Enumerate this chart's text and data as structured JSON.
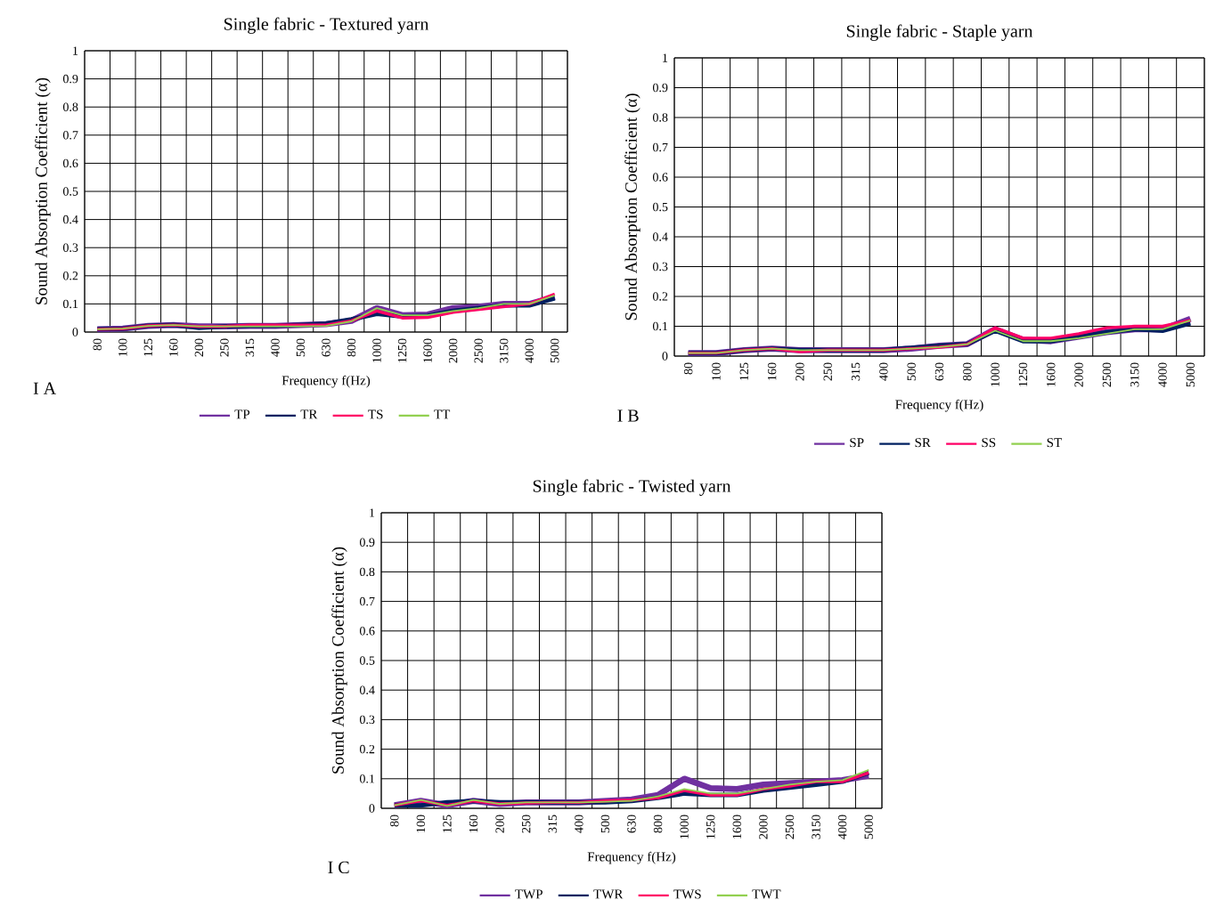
{
  "chart_data": [
    {
      "type": "line",
      "title": "Single fabric - Textured yarn",
      "xlabel": "Frequency f(Hz)",
      "ylabel": "Sound Absorption Coefficient (α)",
      "annotations": [
        "I A"
      ],
      "categories": [
        "80",
        "100",
        "125",
        "160",
        "200",
        "250",
        "315",
        "400",
        "500",
        "630",
        "800",
        "1000",
        "1250",
        "1600",
        "2000",
        "2500",
        "3150",
        "4000",
        "5000"
      ],
      "ylim": [
        0,
        1
      ],
      "yticks": [
        0,
        0.1,
        0.2,
        0.3,
        0.4,
        0.5,
        0.6,
        0.7,
        0.8,
        0.9,
        1
      ],
      "grid": true,
      "legend": "bottom",
      "marker": "none",
      "series": [
        {
          "name": "TP",
          "color": "#7030a0",
          "values": [
            0.01,
            0.012,
            0.022,
            0.025,
            0.02,
            0.02,
            0.022,
            0.022,
            0.025,
            0.028,
            0.04,
            0.085,
            0.06,
            0.062,
            0.085,
            0.09,
            0.1,
            0.1,
            0.125
          ]
        },
        {
          "name": "TR",
          "color": "#002060",
          "values": [
            0.01,
            0.012,
            0.022,
            0.025,
            0.015,
            0.02,
            0.022,
            0.022,
            0.025,
            0.03,
            0.045,
            0.065,
            0.055,
            0.058,
            0.075,
            0.085,
            0.095,
            0.095,
            0.12
          ]
        },
        {
          "name": "TS",
          "color": "#ff0066",
          "values": [
            0.01,
            0.012,
            0.022,
            0.025,
            0.02,
            0.02,
            0.025,
            0.025,
            0.025,
            0.025,
            0.04,
            0.075,
            0.05,
            0.052,
            0.07,
            0.08,
            0.09,
            0.1,
            0.135
          ]
        },
        {
          "name": "TT",
          "color": "#92d050",
          "values": [
            0.01,
            0.012,
            0.022,
            0.025,
            0.02,
            0.02,
            0.02,
            0.02,
            0.02,
            0.022,
            0.038,
            0.085,
            0.06,
            0.06,
            0.075,
            0.085,
            0.1,
            0.1,
            0.13
          ]
        }
      ]
    },
    {
      "type": "line",
      "title": "Single fabric - Staple yarn",
      "xlabel": "Frequency f(Hz)",
      "ylabel": "Sound Absorption Coefficient (α)",
      "annotations": [
        "I B"
      ],
      "categories": [
        "80",
        "100",
        "125",
        "160",
        "200",
        "250",
        "315",
        "400",
        "500",
        "630",
        "800",
        "1000",
        "1250",
        "1600",
        "2000",
        "2500",
        "3150",
        "4000",
        "5000"
      ],
      "ylim": [
        0,
        1
      ],
      "yticks": [
        0,
        0.1,
        0.2,
        0.3,
        0.4,
        0.5,
        0.6,
        0.7,
        0.8,
        0.9,
        1
      ],
      "grid": true,
      "legend": "bottom",
      "marker": "none",
      "series": [
        {
          "name": "SP",
          "color": "#7030a0",
          "values": [
            0.01,
            0.01,
            0.02,
            0.025,
            0.02,
            0.02,
            0.02,
            0.02,
            0.025,
            0.035,
            0.04,
            0.09,
            0.055,
            0.05,
            0.065,
            0.08,
            0.09,
            0.09,
            0.125
          ]
        },
        {
          "name": "SR",
          "color": "#002060",
          "values": [
            0.01,
            0.01,
            0.02,
            0.025,
            0.02,
            0.02,
            0.02,
            0.02,
            0.028,
            0.035,
            0.04,
            0.085,
            0.05,
            0.05,
            0.065,
            0.08,
            0.09,
            0.085,
            0.11
          ]
        },
        {
          "name": "SS",
          "color": "#ff0066",
          "values": [
            0.01,
            0.01,
            0.02,
            0.025,
            0.015,
            0.02,
            0.02,
            0.02,
            0.025,
            0.03,
            0.04,
            0.095,
            0.06,
            0.06,
            0.075,
            0.095,
            0.1,
            0.1,
            0.12
          ]
        },
        {
          "name": "ST",
          "color": "#92d050",
          "values": [
            0.01,
            0.01,
            0.02,
            0.025,
            0.02,
            0.02,
            0.02,
            0.02,
            0.025,
            0.03,
            0.04,
            0.085,
            0.05,
            0.05,
            0.06,
            0.075,
            0.09,
            0.09,
            0.12
          ]
        }
      ]
    },
    {
      "type": "line",
      "title": "Single fabric - Twisted yarn",
      "xlabel": "Frequency f(Hz)",
      "ylabel": "Sound Absorption Coefficient (α)",
      "annotations": [
        "I C"
      ],
      "categories": [
        "80",
        "100",
        "125",
        "160",
        "200",
        "250",
        "315",
        "400",
        "500",
        "630",
        "800",
        "1000",
        "1250",
        "1600",
        "2000",
        "2500",
        "3150",
        "4000",
        "5000"
      ],
      "ylim": [
        0,
        1
      ],
      "yticks": [
        0,
        0.1,
        0.2,
        0.3,
        0.4,
        0.5,
        0.6,
        0.7,
        0.8,
        0.9,
        1
      ],
      "grid": true,
      "legend": "bottom",
      "marker": "none",
      "series": [
        {
          "name": "TWP",
          "color": "#7030a0",
          "values": [
            0.01,
            0.025,
            0.01,
            0.025,
            0.015,
            0.02,
            0.02,
            0.02,
            0.025,
            0.03,
            0.045,
            0.1,
            0.068,
            0.065,
            0.08,
            0.085,
            0.09,
            0.095,
            0.11
          ]
        },
        {
          "name": "TWR",
          "color": "#002060",
          "values": [
            0.01,
            0.01,
            0.02,
            0.025,
            0.02,
            0.02,
            0.02,
            0.02,
            0.02,
            0.025,
            0.035,
            0.05,
            0.045,
            0.045,
            0.06,
            0.07,
            0.08,
            0.09,
            0.12
          ]
        },
        {
          "name": "TWS",
          "color": "#ff0066",
          "values": [
            0.01,
            0.025,
            0.01,
            0.025,
            0.015,
            0.018,
            0.02,
            0.02,
            0.025,
            0.028,
            0.035,
            0.06,
            0.045,
            0.045,
            0.065,
            0.075,
            0.09,
            0.09,
            0.12
          ]
        },
        {
          "name": "TWT",
          "color": "#92d050",
          "values": [
            0.01,
            0.028,
            0.008,
            0.028,
            0.015,
            0.02,
            0.02,
            0.02,
            0.022,
            0.025,
            0.04,
            0.065,
            0.05,
            0.05,
            0.065,
            0.08,
            0.09,
            0.095,
            0.13
          ]
        }
      ]
    }
  ]
}
